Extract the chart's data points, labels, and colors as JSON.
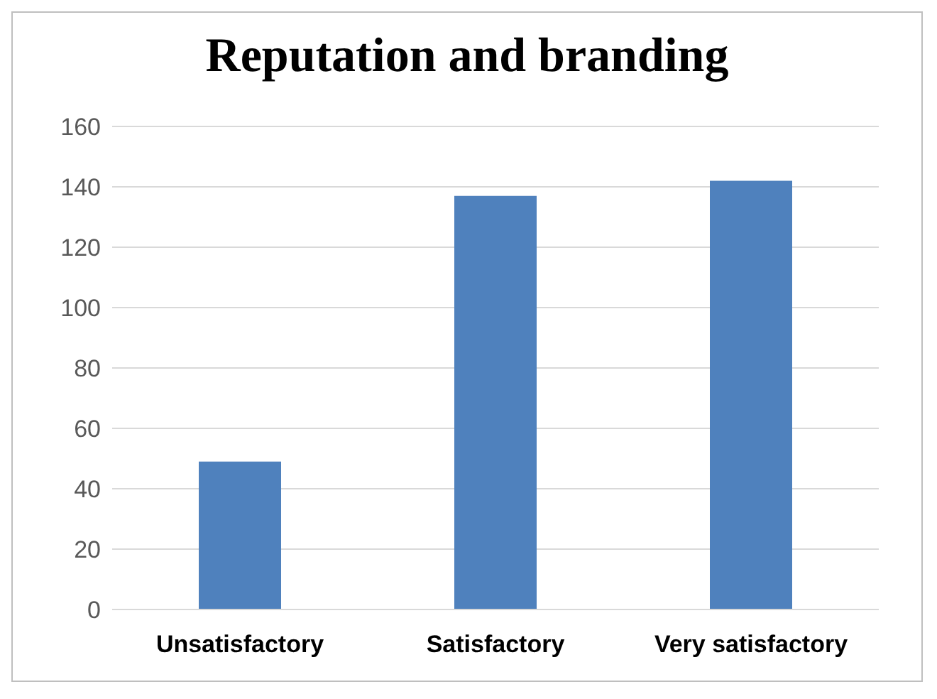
{
  "chart_data": {
    "type": "bar",
    "title": "Reputation and branding",
    "categories": [
      "Unsatisfactory",
      "Satisfactory",
      "Very satisfactory"
    ],
    "values": [
      49,
      137,
      142
    ],
    "color": "#4f81bd",
    "ylim": [
      0,
      160
    ],
    "yticks": [
      0,
      20,
      40,
      60,
      80,
      100,
      120,
      140,
      160
    ],
    "grid": "y",
    "legend": false
  }
}
